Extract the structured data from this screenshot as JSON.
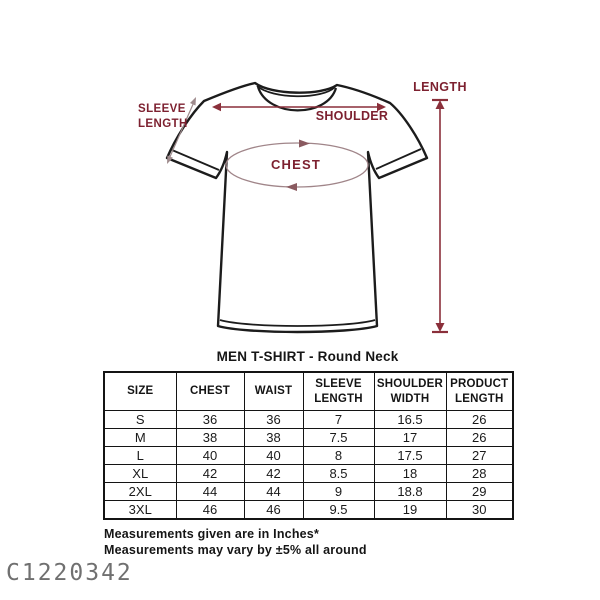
{
  "title": "MEN T-SHIRT - Round Neck",
  "diagram": {
    "labels": {
      "sleeve_line1": "SLEEVE",
      "sleeve_line2": "LENGTH",
      "shoulder": "SHOULDER",
      "chest": "CHEST",
      "length": "LENGTH"
    }
  },
  "size_chart": {
    "headers": [
      "SIZE",
      "CHEST",
      "WAIST",
      "SLEEVE LENGTH",
      "SHOULDER WIDTH",
      "PRODUCT LENGTH"
    ],
    "rows": [
      [
        "S",
        "36",
        "36",
        "7",
        "16.5",
        "26"
      ],
      [
        "M",
        "38",
        "38",
        "7.5",
        "17",
        "26"
      ],
      [
        "L",
        "40",
        "40",
        "8",
        "17.5",
        "27"
      ],
      [
        "XL",
        "42",
        "42",
        "8.5",
        "18",
        "28"
      ],
      [
        "2XL",
        "44",
        "44",
        "9",
        "18.8",
        "29"
      ],
      [
        "3XL",
        "46",
        "46",
        "9.5",
        "19",
        "30"
      ]
    ]
  },
  "notes": {
    "line1": "Measurements given are in Inches*",
    "line2": "Measurements may vary by ±5% all around"
  },
  "watermark": "C1220342",
  "colors": {
    "label_maroon": "#7d2130",
    "dimension_line": "#8a2f3a",
    "sleeve_arrow": "#9e8a8c",
    "chest_ellipse": "#a08589",
    "shirt_outline": "#1c1c1c",
    "watermark_gray": "#707070",
    "background": "#ffffff"
  }
}
